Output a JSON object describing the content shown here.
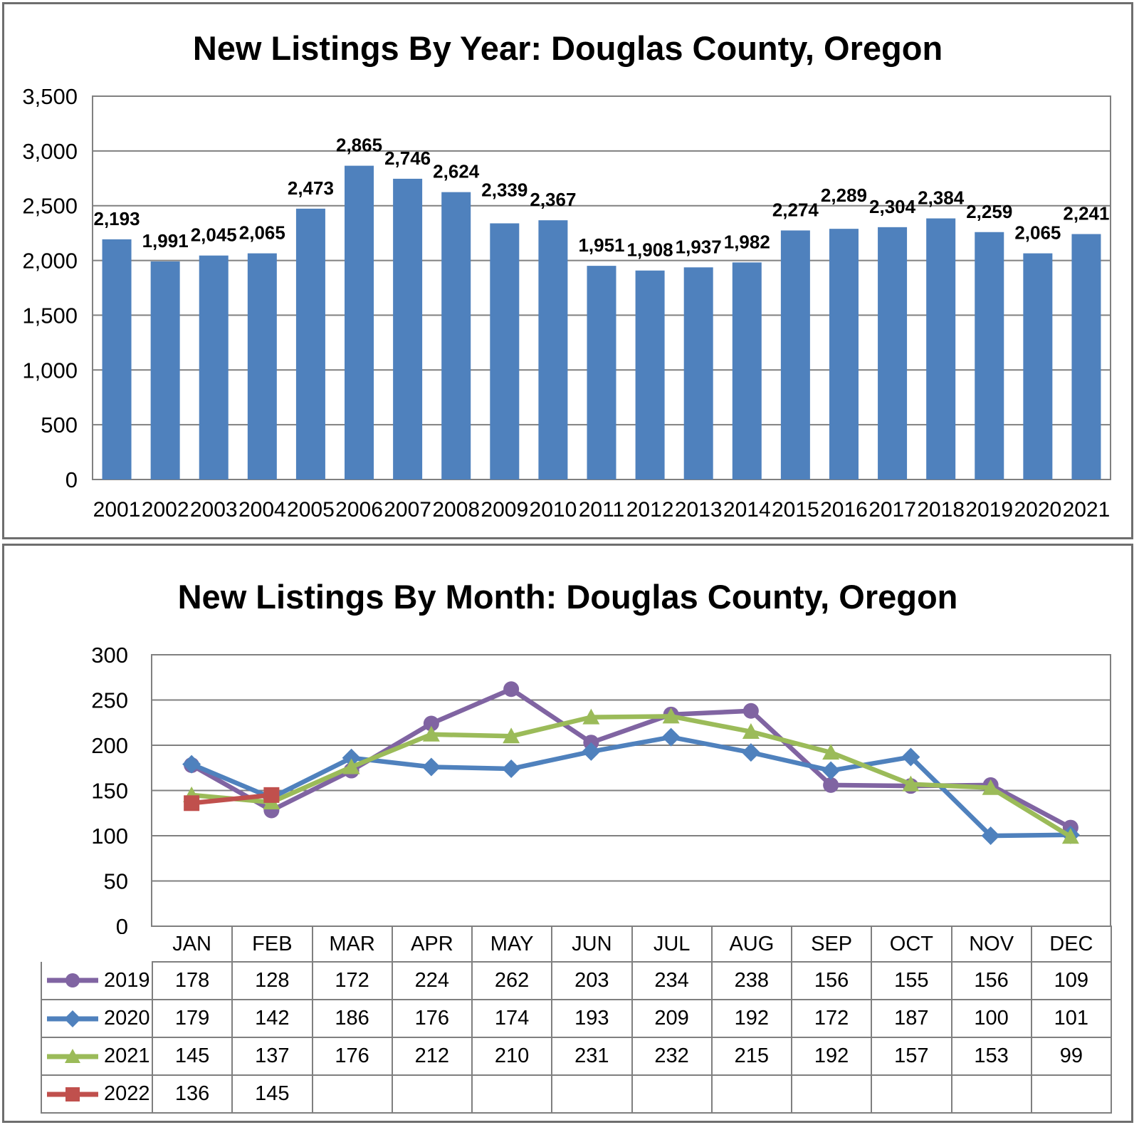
{
  "chart_data": [
    {
      "type": "bar",
      "title": "New Listings By Year: Douglas County, Oregon",
      "categories": [
        "2001",
        "2002",
        "2003",
        "2004",
        "2005",
        "2006",
        "2007",
        "2008",
        "2009",
        "2010",
        "2011",
        "2012",
        "2013",
        "2014",
        "2015",
        "2016",
        "2017",
        "2018",
        "2019",
        "2020",
        "2021"
      ],
      "values": [
        2193,
        1991,
        2045,
        2065,
        2473,
        2865,
        2746,
        2624,
        2339,
        2367,
        1951,
        1908,
        1937,
        1982,
        2274,
        2289,
        2304,
        2384,
        2259,
        2065,
        2241
      ],
      "data_labels": [
        "2,193",
        "1,991",
        "2,045",
        "2,065",
        "2,473",
        "2,865",
        "2,746",
        "2,624",
        "2,339",
        "2,367",
        "1,951",
        "1,908",
        "1,937",
        "1,982",
        "2,274",
        "2,289",
        "2,304",
        "2,384",
        "2,259",
        "2,065",
        "2,241"
      ],
      "xlabel": "",
      "ylabel": "",
      "ylim": [
        0,
        3500
      ],
      "ytick_step": 500,
      "ytick_labels": [
        "0",
        "500",
        "1,000",
        "1,500",
        "2,000",
        "2,500",
        "3,000",
        "3,500"
      ],
      "grid": "horizontal",
      "legend_position": "none",
      "bar_color": "#4F81BD",
      "label_raise_indices": [
        8,
        15
      ]
    },
    {
      "type": "line",
      "title": "New Listings By Month: Douglas County, Oregon",
      "categories": [
        "JAN",
        "FEB",
        "MAR",
        "APR",
        "MAY",
        "JUN",
        "JUL",
        "AUG",
        "SEP",
        "OCT",
        "NOV",
        "DEC"
      ],
      "series": [
        {
          "name": "2019",
          "color": "#8064A2",
          "marker": "circle",
          "values": [
            178,
            128,
            172,
            224,
            262,
            203,
            234,
            238,
            156,
            155,
            156,
            109
          ]
        },
        {
          "name": "2020",
          "color": "#4F81BD",
          "marker": "diamond",
          "values": [
            179,
            142,
            186,
            176,
            174,
            193,
            209,
            192,
            172,
            187,
            100,
            101
          ]
        },
        {
          "name": "2021",
          "color": "#9BBB59",
          "marker": "triangle",
          "values": [
            145,
            137,
            176,
            212,
            210,
            231,
            232,
            215,
            192,
            157,
            153,
            99
          ]
        },
        {
          "name": "2022",
          "color": "#C0504D",
          "marker": "square",
          "values": [
            136,
            145,
            null,
            null,
            null,
            null,
            null,
            null,
            null,
            null,
            null,
            null
          ]
        }
      ],
      "xlabel": "",
      "ylabel": "",
      "ylim": [
        0,
        300
      ],
      "ytick_step": 50,
      "ytick_labels": [
        "0",
        "50",
        "100",
        "150",
        "200",
        "250",
        "300"
      ],
      "grid": "horizontal",
      "legend_position": "data-table-left"
    }
  ]
}
